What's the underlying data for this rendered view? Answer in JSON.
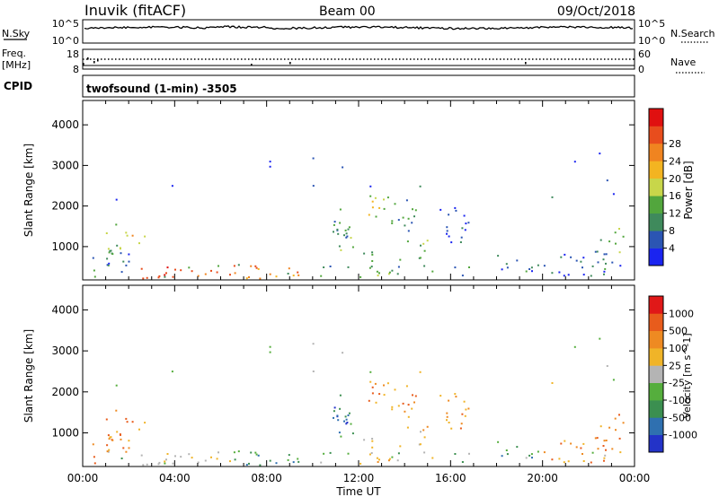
{
  "header": {
    "station": "Inuvik (fitACF)",
    "beam": "Beam 00",
    "date": "09/Oct/2018"
  },
  "panels": {
    "nsky": {
      "left_label": "N.Sky",
      "left_ticks": [
        "10^5",
        "10^0"
      ],
      "right_label": "N.Search",
      "right_ticks": [
        "10^5",
        "10^0"
      ]
    },
    "freq": {
      "left_label_1": "Freq.",
      "left_label_2": "[MHz]",
      "left_ticks": [
        "18",
        "8"
      ],
      "right_label": "Nave",
      "right_ticks": [
        "60",
        "0"
      ]
    },
    "cpid": {
      "left_label": "CPID",
      "text": "twofsound (1-min) -3505"
    }
  },
  "chart_data": [
    {
      "type": "heatmap",
      "name": "power",
      "ylabel": "Slant Range [km]",
      "yticks": [
        1000,
        2000,
        3000,
        4000
      ],
      "ylim": [
        180,
        4600
      ],
      "xlabel": "",
      "xlim_hours": [
        0,
        24
      ],
      "colorbar": {
        "label": "Power [dB]",
        "ticks": [
          "4",
          "8",
          "12",
          "16",
          "20",
          "24",
          "28"
        ],
        "colors": [
          "#1a24f0",
          "#2b55b3",
          "#3f8a5c",
          "#52a63d",
          "#c8d64a",
          "#f3b421",
          "#f08420",
          "#e84d1d",
          "#e01010"
        ]
      }
    },
    {
      "type": "heatmap",
      "name": "velocity",
      "ylabel": "Slant Range [km]",
      "yticks": [
        1000,
        2000,
        3000,
        4000
      ],
      "ylim": [
        180,
        4600
      ],
      "xlabel": "Time UT",
      "xticks": [
        "00:00",
        "04:00",
        "08:00",
        "12:00",
        "16:00",
        "20:00",
        "00:00"
      ],
      "xlim_hours": [
        0,
        24
      ],
      "colorbar": {
        "label": "Velocity [m s^-1]",
        "ticks": [
          "1000",
          "500",
          "100",
          "25",
          "-25",
          "-100",
          "-500",
          "-1000"
        ],
        "colors": [
          "#2333c8",
          "#2f70b0",
          "#3b8f50",
          "#55ae3d",
          "#b4b4b4",
          "#f0b428",
          "#ee8a22",
          "#e85c1c",
          "#e01818"
        ]
      }
    }
  ]
}
